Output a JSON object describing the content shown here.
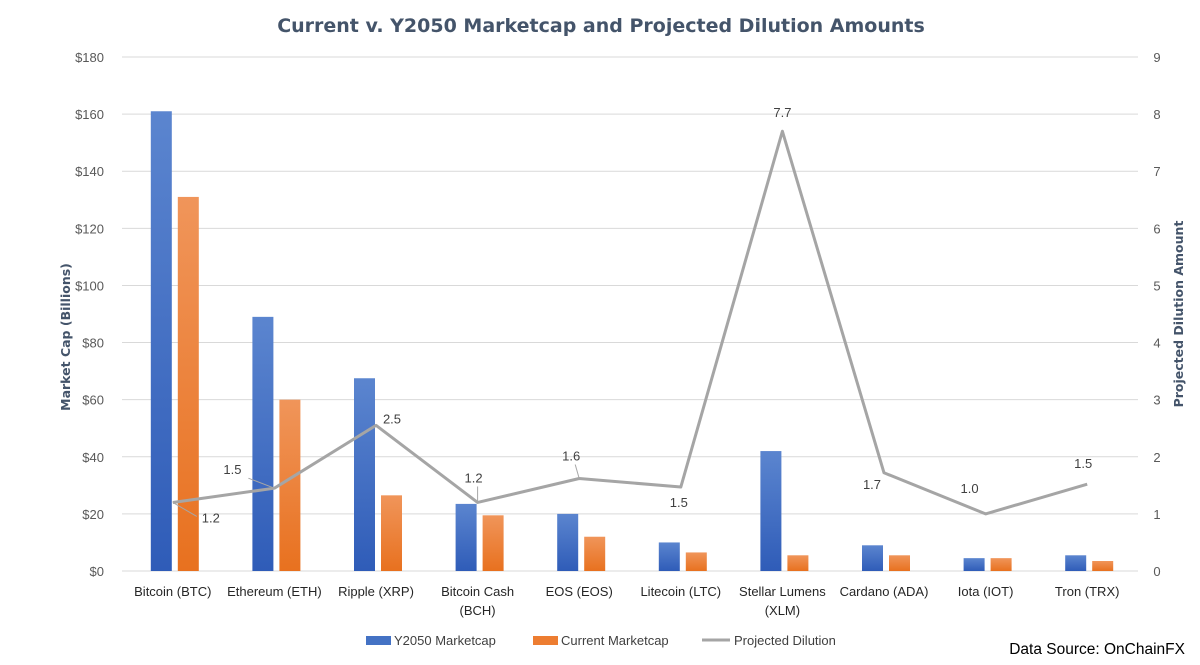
{
  "chart_data": {
    "type": "bar",
    "title": "Current v. Y2050 Marketcap and Projected Dilution Amounts",
    "xlabel": "",
    "ylabel": "Market Cap  (Billions)",
    "y2label": "Projected Dilution Amount",
    "categories": [
      [
        "Bitcoin (BTC)"
      ],
      [
        "Ethereum (ETH)"
      ],
      [
        "Ripple (XRP)"
      ],
      [
        "Bitcoin Cash",
        "(BCH)"
      ],
      [
        "EOS (EOS)"
      ],
      [
        "Litecoin (LTC)"
      ],
      [
        "Stellar Lumens",
        "(XLM)"
      ],
      [
        "Cardano (ADA)"
      ],
      [
        "Iota (IOT)"
      ],
      [
        "Tron (TRX)"
      ]
    ],
    "ylim": [
      0,
      180
    ],
    "yticks": [
      0,
      20,
      40,
      60,
      80,
      100,
      120,
      140,
      160,
      180
    ],
    "ytick_labels": [
      "$0",
      "$20",
      "$40",
      "$60",
      "$80",
      "$100",
      "$120",
      "$140",
      "$160",
      "$180"
    ],
    "y2lim": [
      0,
      9
    ],
    "y2ticks": [
      "0",
      "1",
      "2",
      "3",
      "4",
      "5",
      "6",
      "7",
      "8",
      "9"
    ],
    "grid": true,
    "series": [
      {
        "name": "Y2050 Marketcap",
        "kind": "bar",
        "axis": "left",
        "color": "#4472c4",
        "values": [
          161,
          89,
          67.5,
          23.5,
          20,
          10,
          42,
          9,
          4.5,
          5.5
        ]
      },
      {
        "name": "Current Marketcap",
        "kind": "bar",
        "axis": "left",
        "color": "#ed7d31",
        "values": [
          131,
          60,
          26.5,
          19.5,
          12,
          6.5,
          5.5,
          5.5,
          4.5,
          3.5
        ]
      },
      {
        "name": "Projected Dilution",
        "kind": "line",
        "axis": "right",
        "color": "#a5a5a5",
        "values": [
          1.2,
          1.45,
          2.55,
          1.2,
          1.62,
          1.47,
          7.7,
          1.72,
          1.0,
          1.52
        ],
        "data_labels": [
          "1.2",
          "1.5",
          "2.5",
          "1.2",
          "1.6",
          "1.5",
          "7.7",
          "1.7",
          "1.0",
          "1.5"
        ]
      }
    ],
    "legend_position": "bottom",
    "source": "Data Source: OnChainFX"
  }
}
